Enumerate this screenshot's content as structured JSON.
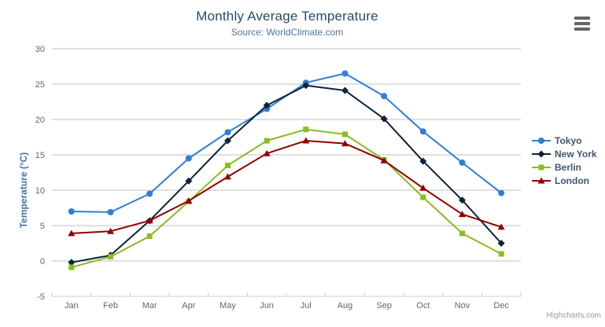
{
  "chart_data": {
    "type": "line",
    "title": "Monthly Average Temperature",
    "subtitle": "Source: WorldClimate.com",
    "xlabel": "",
    "ylabel": "Temperature (°C)",
    "categories": [
      "Jan",
      "Feb",
      "Mar",
      "Apr",
      "May",
      "Jun",
      "Jul",
      "Aug",
      "Sep",
      "Oct",
      "Nov",
      "Dec"
    ],
    "ylim": [
      -5,
      30
    ],
    "ytick_interval": 5,
    "grid": true,
    "legend_position": "right",
    "series": [
      {
        "name": "Tokyo",
        "color": "#2f7ed8",
        "marker": "circle",
        "values": [
          7.0,
          6.9,
          9.5,
          14.5,
          18.2,
          21.5,
          25.2,
          26.5,
          23.3,
          18.3,
          13.9,
          9.6
        ]
      },
      {
        "name": "New York",
        "color": "#0d233a",
        "marker": "diamond",
        "values": [
          -0.2,
          0.8,
          5.7,
          11.3,
          17.0,
          22.0,
          24.8,
          24.1,
          20.1,
          14.1,
          8.6,
          2.5
        ]
      },
      {
        "name": "Berlin",
        "color": "#8bbc21",
        "marker": "square",
        "values": [
          -0.9,
          0.6,
          3.5,
          8.4,
          13.5,
          17.0,
          18.6,
          17.9,
          14.3,
          9.0,
          3.9,
          1.0
        ]
      },
      {
        "name": "London",
        "color": "#910000",
        "marker": "triangle",
        "values": [
          3.9,
          4.2,
          5.7,
          8.5,
          11.9,
          15.2,
          17.0,
          16.6,
          14.2,
          10.3,
          6.6,
          4.8
        ]
      }
    ],
    "colors": {
      "grid_line": "#C0C0C0",
      "axis_line": "#C0D0E0",
      "tick_label": "#666666",
      "title": "#274b6d",
      "subtitle": "#4d759e",
      "y_axis_title": "#4572A7",
      "legend_text": "#3E576F",
      "credits": "#999999"
    }
  },
  "icons": {
    "context_menu": "hamburger-icon"
  },
  "credits": {
    "label": "Highcharts.com"
  }
}
